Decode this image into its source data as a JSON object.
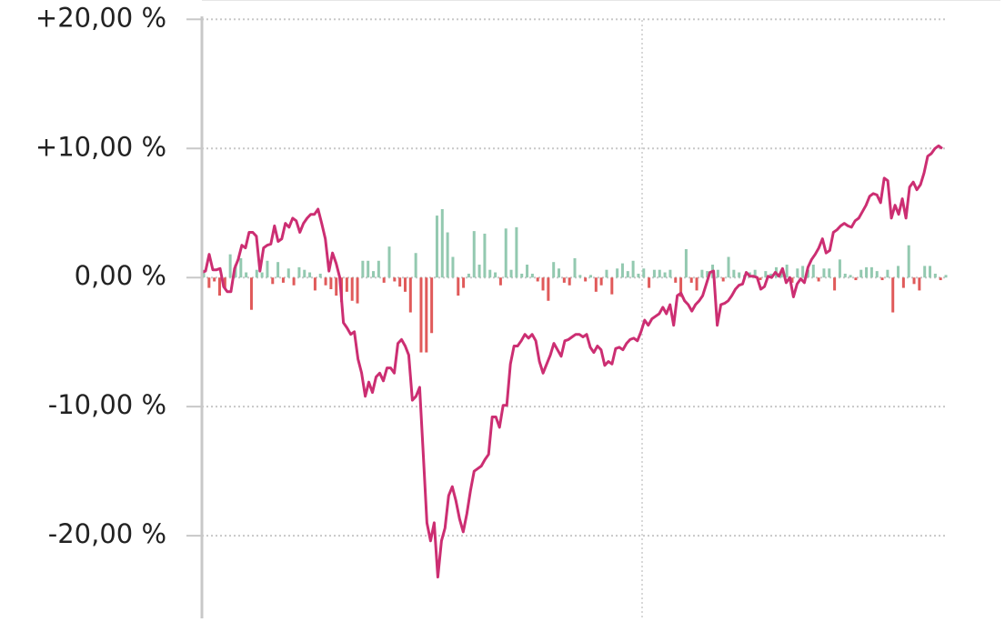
{
  "chart_data": {
    "type": "bar-line",
    "ylim": [
      -26.4,
      21.5
    ],
    "yticks": [
      {
        "value": 20,
        "label": "+20,00 %"
      },
      {
        "value": 10,
        "label": "+10,00 %"
      },
      {
        "value": 0,
        "label": "0,00 %"
      },
      {
        "value": -10,
        "label": "-10,00 %"
      },
      {
        "value": -20,
        "label": "-20,00 %"
      }
    ],
    "grid": true,
    "series": [
      {
        "type": "bar",
        "color": "#93c9b0",
        "negative_color": "#e05a5a",
        "values": [
          0.6,
          -0.8,
          -0.3,
          -1.4,
          -0.8,
          1.8,
          1.0,
          1.5,
          0.4,
          -2.5,
          0.6,
          0.4,
          1.3,
          -0.5,
          1.2,
          -0.4,
          0.7,
          -0.6,
          0.8,
          0.6,
          0.4,
          -1.0,
          0.3,
          -0.6,
          -0.9,
          -1.4,
          -1.9,
          -1.1,
          -1.8,
          -2.0,
          1.3,
          1.3,
          0.5,
          1.3,
          -0.4,
          2.4,
          -0.3,
          -0.7,
          -1.1,
          -2.7,
          1.9,
          -5.8,
          -5.8,
          -4.3,
          4.8,
          5.3,
          3.5,
          1.6,
          -1.4,
          -0.8,
          0.3,
          3.6,
          1.0,
          3.4,
          0.6,
          0.4,
          -0.6,
          3.8,
          0.6,
          3.9,
          0.3,
          1.0,
          0.3,
          -0.3,
          -1.0,
          -1.8,
          1.2,
          0.7,
          -0.4,
          -0.6,
          1.5,
          0.2,
          -0.3,
          0.2,
          -1.1,
          -0.6,
          0.6,
          -1.3,
          0.7,
          1.1,
          0.5,
          1.3,
          0.3,
          0.7,
          -0.8,
          0.6,
          0.6,
          0.4,
          0.6,
          -0.4,
          -1.5,
          2.2,
          -0.4,
          -1.0,
          0.6,
          0.5,
          1.0,
          0.6,
          -0.3,
          1.6,
          0.6,
          0.4,
          0.2,
          0.4,
          0.6,
          -0.2,
          0.5,
          0.3,
          0.8,
          0.6,
          1.0,
          -0.4,
          0.7,
          0.9,
          0.6,
          1.0,
          -0.3,
          0.7,
          0.7,
          -1.0,
          1.4,
          0.3,
          0.2,
          -0.2,
          0.6,
          0.8,
          0.8,
          0.5,
          -0.2,
          0.6,
          -2.7,
          0.9,
          -0.8,
          2.5,
          -0.5,
          -1.0,
          0.9,
          0.9,
          0.3,
          -0.2,
          0.2
        ]
      },
      {
        "type": "line",
        "color": "#cc2e72",
        "values": [
          0.4,
          0.5,
          1.8,
          0.6,
          0.6,
          0.7,
          -0.7,
          -1.1,
          -1.1,
          0.7,
          1.4,
          2.5,
          2.3,
          3.5,
          3.5,
          3.2,
          0.5,
          2.3,
          2.5,
          2.6,
          4.0,
          2.8,
          3.0,
          4.2,
          3.9,
          4.6,
          4.4,
          3.5,
          4.2,
          4.6,
          4.9,
          4.9,
          5.3,
          4.2,
          3.0,
          0.5,
          1.9,
          1.1,
          0,
          -3.5,
          -3.9,
          -4.4,
          -4.2,
          -6.3,
          -7.4,
          -9.2,
          -8.1,
          -8.9,
          -7.7,
          -7.4,
          -8.0,
          -7.0,
          -7.0,
          -7.4,
          -5.1,
          -4.8,
          -5.3,
          -6.0,
          -9.5,
          -9.2,
          -8.5,
          -13.7,
          -19.0,
          -20.4,
          -19.0,
          -23.2,
          -20.4,
          -19.4,
          -16.9,
          -16.2,
          -17.3,
          -18.7,
          -19.7,
          -18.3,
          -16.5,
          -15.0,
          -14.8,
          -14.6,
          -14.1,
          -13.7,
          -10.8,
          -10.8,
          -11.6,
          -9.9,
          -9.9,
          -6.7,
          -5.3,
          -5.3,
          -4.9,
          -4.4,
          -4.7,
          -4.4,
          -4.9,
          -6.5,
          -7.4,
          -6.7,
          -6.0,
          -5.1,
          -5.6,
          -6.1,
          -4.9,
          -4.8,
          -4.6,
          -4.4,
          -4.4,
          -4.6,
          -4.4,
          -5.4,
          -5.8,
          -5.3,
          -5.6,
          -6.8,
          -6.5,
          -6.7,
          -5.5,
          -5.4,
          -5.6,
          -5.1,
          -4.8,
          -4.7,
          -4.9,
          -4.2,
          -3.3,
          -3.7,
          -3.2,
          -3.0,
          -2.8,
          -2.3,
          -2.8,
          -2.1,
          -3.7,
          -1.4,
          -1.2,
          -1.8,
          -2.1,
          -2.6,
          -2.1,
          -1.8,
          -1.4,
          -0.5,
          0.4,
          0.5,
          -3.7,
          -2.1,
          -2.0,
          -1.8,
          -1.4,
          -0.9,
          -0.6,
          -0.5,
          0.4,
          0.1,
          0.1,
          0,
          -0.9,
          -0.7,
          0.1,
          0,
          0.4,
          0.1,
          0.7,
          -0.4,
          0,
          -1.5,
          -0.5,
          -0.1,
          -0.4,
          0.8,
          1.4,
          1.8,
          2.3,
          3.0,
          1.9,
          2.1,
          3.5,
          3.7,
          4.0,
          4.2,
          4.0,
          3.9,
          4.4,
          4.6,
          5.1,
          5.6,
          6.3,
          6.5,
          6.4,
          5.8,
          7.7,
          7.5,
          4.6,
          5.6,
          4.9,
          6.1,
          4.6,
          7.0,
          7.4,
          6.8,
          7.2,
          8.1,
          9.4,
          9.6,
          10.0,
          10.2,
          10.0
        ]
      }
    ]
  }
}
